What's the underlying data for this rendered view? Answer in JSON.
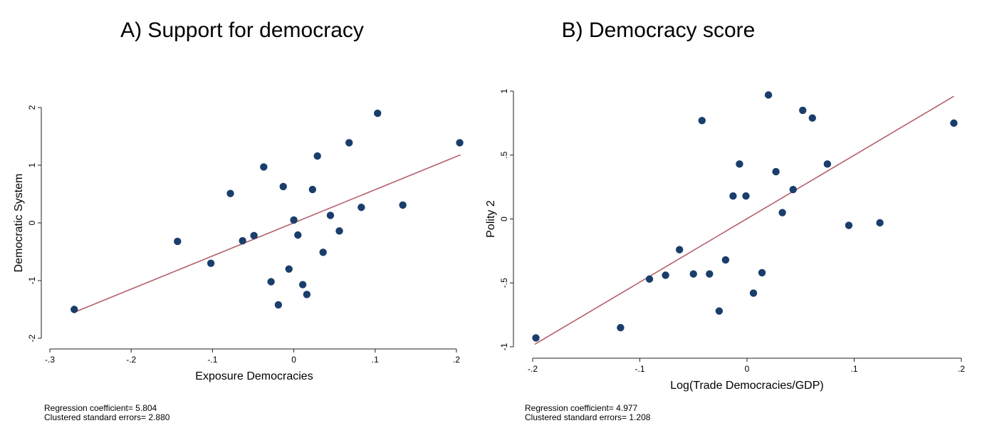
{
  "chart_data": [
    {
      "type": "scatter",
      "title": "A) Support for democracy",
      "xlabel": "Exposure Democracies",
      "ylabel": "Democratic System",
      "xlim": [
        -0.3,
        0.2
      ],
      "ylim": [
        -2,
        2
      ],
      "xticks": [
        -0.3,
        -0.2,
        -0.1,
        0,
        0.1,
        0.2
      ],
      "xtick_labels": [
        "-.3",
        "-.2",
        "-.1",
        "0",
        ".1",
        ".2"
      ],
      "yticks": [
        -2,
        -1,
        0,
        1,
        2
      ],
      "ytick_labels": [
        "-2",
        "-1",
        "0",
        "1",
        "2"
      ],
      "grid": false,
      "marker_color": "#1a3e6b",
      "fit_color": "#b5606a",
      "fit_line": {
        "x": [
          -0.27,
          0.205
        ],
        "y": [
          -1.55,
          1.18
        ]
      },
      "points": [
        {
          "x": -0.27,
          "y": -1.5
        },
        {
          "x": -0.143,
          "y": -0.32
        },
        {
          "x": -0.102,
          "y": -0.7
        },
        {
          "x": -0.078,
          "y": 0.51
        },
        {
          "x": -0.063,
          "y": -0.31
        },
        {
          "x": -0.049,
          "y": -0.22
        },
        {
          "x": -0.037,
          "y": 0.97
        },
        {
          "x": -0.028,
          "y": -1.02
        },
        {
          "x": -0.019,
          "y": -1.42
        },
        {
          "x": -0.013,
          "y": 0.63
        },
        {
          "x": -0.006,
          "y": -0.8
        },
        {
          "x": 0.0,
          "y": 0.05
        },
        {
          "x": 0.005,
          "y": -0.21
        },
        {
          "x": 0.011,
          "y": -1.07
        },
        {
          "x": 0.016,
          "y": -1.24
        },
        {
          "x": 0.023,
          "y": 0.58
        },
        {
          "x": 0.029,
          "y": 1.16
        },
        {
          "x": 0.036,
          "y": -0.51
        },
        {
          "x": 0.045,
          "y": 0.13
        },
        {
          "x": 0.056,
          "y": -0.14
        },
        {
          "x": 0.068,
          "y": 1.39
        },
        {
          "x": 0.083,
          "y": 0.27
        },
        {
          "x": 0.103,
          "y": 1.9
        },
        {
          "x": 0.134,
          "y": 0.31
        },
        {
          "x": 0.204,
          "y": 1.39
        }
      ],
      "note": [
        "Regression coefficient= 5.804",
        "Clustered standard errors= 2.880"
      ]
    },
    {
      "type": "scatter",
      "title": "B) Democracy score",
      "xlabel": "Log(Trade Democracies/GDP)",
      "ylabel": "Polity 2",
      "xlim": [
        -0.2,
        0.2
      ],
      "ylim": [
        -1,
        1
      ],
      "xticks": [
        -0.2,
        -0.1,
        0,
        0.1,
        0.2
      ],
      "xtick_labels": [
        "-.2",
        "-.1",
        "0",
        ".1",
        ".2"
      ],
      "yticks": [
        -1,
        -0.5,
        0,
        0.5,
        1
      ],
      "ytick_labels": [
        "-1",
        "-.5",
        "0",
        ".5",
        "1"
      ],
      "grid": false,
      "marker_color": "#1a3e6b",
      "fit_color": "#b5606a",
      "fit_line": {
        "x": [
          -0.198,
          0.193
        ],
        "y": [
          -0.98,
          0.96
        ]
      },
      "points": [
        {
          "x": -0.197,
          "y": -0.93
        },
        {
          "x": -0.118,
          "y": -0.85
        },
        {
          "x": -0.091,
          "y": -0.47
        },
        {
          "x": -0.076,
          "y": -0.44
        },
        {
          "x": -0.063,
          "y": -0.24
        },
        {
          "x": -0.05,
          "y": -0.43
        },
        {
          "x": -0.042,
          "y": 0.77
        },
        {
          "x": -0.035,
          "y": -0.43
        },
        {
          "x": -0.026,
          "y": -0.72
        },
        {
          "x": -0.02,
          "y": -0.32
        },
        {
          "x": -0.013,
          "y": 0.18
        },
        {
          "x": -0.007,
          "y": 0.43
        },
        {
          "x": -0.001,
          "y": 0.18
        },
        {
          "x": 0.006,
          "y": -0.58
        },
        {
          "x": 0.014,
          "y": -0.42
        },
        {
          "x": 0.02,
          "y": 0.97
        },
        {
          "x": 0.027,
          "y": 0.37
        },
        {
          "x": 0.033,
          "y": 0.05
        },
        {
          "x": 0.043,
          "y": 0.23
        },
        {
          "x": 0.052,
          "y": 0.85
        },
        {
          "x": 0.061,
          "y": 0.79
        },
        {
          "x": 0.075,
          "y": 0.43
        },
        {
          "x": 0.095,
          "y": -0.05
        },
        {
          "x": 0.124,
          "y": -0.03
        },
        {
          "x": 0.193,
          "y": 0.75
        }
      ],
      "note": [
        "Regression coefficient= 4.977",
        "Clustered standard errors= 1.208"
      ]
    }
  ]
}
